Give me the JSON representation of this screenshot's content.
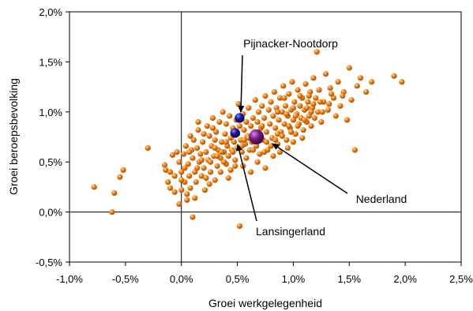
{
  "chart_data": {
    "type": "scatter",
    "title": "",
    "xlabel": "Groei werkgelegenheid",
    "ylabel": "Groei beroepsbevolking",
    "xlim": [
      -1.0,
      2.5
    ],
    "ylim": [
      -0.5,
      2.0
    ],
    "x_ticks": [
      "-1,0%",
      "-0,5%",
      "0,0%",
      "0,5%",
      "1,0%",
      "1,5%",
      "2,0%",
      "2,5%"
    ],
    "y_ticks": [
      "2,0%",
      "1,5%",
      "1,0%",
      "0,5%",
      "0,0%",
      "-0,5%"
    ],
    "grid": false,
    "legend": "none",
    "colors": {
      "municipalities": "#e8780f",
      "highlight": "#1c1c9c",
      "nederland": "#7a1f86"
    },
    "series": [
      {
        "role": "municipalities",
        "points": [
          [
            -0.78,
            0.25
          ],
          [
            -0.62,
            0.0
          ],
          [
            -0.6,
            0.19
          ],
          [
            -0.55,
            0.35
          ],
          [
            -0.52,
            0.42
          ],
          [
            -0.3,
            0.64
          ],
          [
            -0.15,
            0.47
          ],
          [
            -0.14,
            0.42
          ],
          [
            -0.12,
            0.3
          ],
          [
            -0.1,
            0.24
          ],
          [
            -0.08,
            0.57
          ],
          [
            -0.06,
            0.36
          ],
          [
            -0.04,
            0.6
          ],
          [
            -0.02,
            0.5
          ],
          [
            0.0,
            0.4
          ],
          [
            0.0,
            0.22
          ],
          [
            0.02,
            0.58
          ],
          [
            0.03,
            0.3
          ],
          [
            0.04,
            0.66
          ],
          [
            0.05,
            0.18
          ],
          [
            0.06,
            0.48
          ],
          [
            0.07,
            0.36
          ],
          [
            0.08,
            0.24
          ],
          [
            0.09,
            0.62
          ],
          [
            0.1,
            -0.05
          ],
          [
            0.1,
            0.54
          ],
          [
            0.11,
            0.72
          ],
          [
            0.12,
            0.4
          ],
          [
            0.13,
            0.3
          ],
          [
            0.14,
            0.64
          ],
          [
            0.15,
            0.82
          ],
          [
            0.16,
            0.5
          ],
          [
            0.17,
            0.58
          ],
          [
            0.18,
            0.36
          ],
          [
            0.19,
            0.7
          ],
          [
            0.2,
            0.44
          ],
          [
            0.21,
            0.22
          ],
          [
            0.22,
            0.6
          ],
          [
            0.23,
            0.86
          ],
          [
            0.24,
            0.52
          ],
          [
            0.25,
            0.76
          ],
          [
            0.26,
            0.4
          ],
          [
            0.27,
            0.66
          ],
          [
            0.28,
            0.94
          ],
          [
            0.29,
            0.56
          ],
          [
            0.3,
            0.72
          ],
          [
            0.3,
            0.32
          ],
          [
            0.31,
            0.8
          ],
          [
            0.32,
            0.46
          ],
          [
            0.33,
            0.62
          ],
          [
            0.34,
            0.9
          ],
          [
            0.35,
            0.54
          ],
          [
            0.36,
            0.7
          ],
          [
            0.37,
            1.0
          ],
          [
            0.38,
            0.6
          ],
          [
            0.39,
            0.78
          ],
          [
            0.4,
            0.48
          ],
          [
            0.4,
            0.88
          ],
          [
            0.41,
            0.66
          ],
          [
            0.42,
            0.56
          ],
          [
            0.43,
            0.96
          ],
          [
            0.44,
            0.74
          ],
          [
            0.45,
            0.62
          ],
          [
            0.46,
            0.84
          ],
          [
            0.47,
            0.7
          ],
          [
            0.48,
            0.52
          ],
          [
            0.49,
            0.92
          ],
          [
            0.5,
            0.78
          ],
          [
            0.5,
            0.64
          ],
          [
            0.51,
            1.08
          ],
          [
            0.52,
            -0.14
          ],
          [
            0.52,
            0.86
          ],
          [
            0.53,
            0.72
          ],
          [
            0.54,
            0.6
          ],
          [
            0.55,
            0.98
          ],
          [
            0.56,
            0.82
          ],
          [
            0.57,
            0.68
          ],
          [
            0.58,
            0.9
          ],
          [
            0.59,
            0.76
          ],
          [
            0.6,
            1.04
          ],
          [
            0.61,
            0.62
          ],
          [
            0.62,
            0.86
          ],
          [
            0.63,
            0.7
          ],
          [
            0.64,
            0.94
          ],
          [
            0.65,
            0.8
          ],
          [
            0.66,
            1.12
          ],
          [
            0.67,
            0.66
          ],
          [
            0.68,
            0.9
          ],
          [
            0.69,
            1.0
          ],
          [
            0.7,
            0.58
          ],
          [
            0.71,
            0.84
          ],
          [
            0.72,
            1.06
          ],
          [
            0.73,
            0.72
          ],
          [
            0.74,
            0.94
          ],
          [
            0.75,
            1.16
          ],
          [
            0.76,
            0.8
          ],
          [
            0.77,
            0.62
          ],
          [
            0.78,
            1.02
          ],
          [
            0.79,
            0.88
          ],
          [
            0.8,
            1.1
          ],
          [
            0.81,
            0.74
          ],
          [
            0.82,
            0.96
          ],
          [
            0.83,
            1.2
          ],
          [
            0.84,
            0.84
          ],
          [
            0.85,
            1.04
          ],
          [
            0.86,
            0.68
          ],
          [
            0.87,
            0.92
          ],
          [
            0.88,
            1.14
          ],
          [
            0.89,
            0.8
          ],
          [
            0.9,
            1.0
          ],
          [
            0.91,
            1.26
          ],
          [
            0.92,
            0.88
          ],
          [
            0.93,
            1.06
          ],
          [
            0.94,
            0.72
          ],
          [
            0.95,
            0.96
          ],
          [
            0.96,
            1.18
          ],
          [
            0.97,
            0.84
          ],
          [
            0.98,
            1.02
          ],
          [
            0.99,
            1.3
          ],
          [
            1.0,
            0.92
          ],
          [
            1.01,
            1.1
          ],
          [
            1.02,
            0.78
          ],
          [
            1.03,
            0.98
          ],
          [
            1.04,
            1.22
          ],
          [
            1.05,
            0.88
          ],
          [
            1.06,
            1.06
          ],
          [
            1.07,
            0.94
          ],
          [
            1.08,
            1.14
          ],
          [
            1.09,
            0.82
          ],
          [
            1.1,
            1.02
          ],
          [
            1.11,
            1.28
          ],
          [
            1.12,
            0.9
          ],
          [
            1.13,
            1.1
          ],
          [
            1.14,
            0.96
          ],
          [
            1.15,
            1.2
          ],
          [
            1.16,
            0.86
          ],
          [
            1.17,
            1.04
          ],
          [
            1.18,
            1.34
          ],
          [
            1.19,
            0.94
          ],
          [
            1.2,
            1.14
          ],
          [
            1.21,
            1.6
          ],
          [
            1.22,
            1.0
          ],
          [
            1.23,
            1.22
          ],
          [
            1.25,
            0.9
          ],
          [
            1.27,
            1.1
          ],
          [
            1.29,
            1.38
          ],
          [
            1.31,
            1.02
          ],
          [
            1.33,
            1.24
          ],
          [
            1.36,
            1.14
          ],
          [
            1.38,
            0.96
          ],
          [
            1.4,
            1.3
          ],
          [
            1.42,
            1.06
          ],
          [
            1.45,
            1.2
          ],
          [
            1.48,
            0.92
          ],
          [
            1.5,
            1.44
          ],
          [
            1.52,
            1.12
          ],
          [
            1.55,
            0.62
          ],
          [
            1.57,
            1.26
          ],
          [
            1.6,
            1.34
          ],
          [
            1.65,
            1.2
          ],
          [
            1.7,
            1.3
          ],
          [
            1.9,
            1.36
          ],
          [
            1.97,
            1.3
          ],
          [
            0.05,
            0.12
          ],
          [
            0.12,
            0.14
          ],
          [
            -0.02,
            0.08
          ],
          [
            0.25,
            0.28
          ],
          [
            0.35,
            0.4
          ],
          [
            0.42,
            0.34
          ],
          [
            0.55,
            0.46
          ],
          [
            0.62,
            0.4
          ],
          [
            0.68,
            0.5
          ],
          [
            0.75,
            0.44
          ],
          [
            0.82,
            0.56
          ],
          [
            0.88,
            0.6
          ],
          [
            0.95,
            0.64
          ],
          [
            1.0,
            0.7
          ],
          [
            1.08,
            0.74
          ],
          [
            0.2,
            0.78
          ],
          [
            0.28,
            0.84
          ],
          [
            0.15,
            0.9
          ],
          [
            0.08,
            0.76
          ],
          [
            0.36,
            0.6
          ],
          [
            0.44,
            0.42
          ],
          [
            0.58,
            0.54
          ],
          [
            0.66,
            0.74
          ],
          [
            0.72,
            0.86
          ],
          [
            0.8,
            0.66
          ],
          [
            0.86,
            0.78
          ],
          [
            0.92,
            1.14
          ],
          [
            0.98,
            0.8
          ],
          [
            1.04,
            0.86
          ],
          [
            1.1,
            0.92
          ],
          [
            1.16,
            1.0
          ],
          [
            0.03,
            0.44
          ],
          [
            0.18,
            0.52
          ],
          [
            0.26,
            0.5
          ],
          [
            0.32,
            0.56
          ],
          [
            0.4,
            0.7
          ],
          [
            0.46,
            0.6
          ],
          [
            0.54,
            0.66
          ],
          [
            0.6,
            0.74
          ],
          [
            0.64,
            0.62
          ],
          [
            0.7,
            0.76
          ],
          [
            0.76,
            0.7
          ],
          [
            0.84,
            0.72
          ],
          [
            0.9,
            0.76
          ],
          [
            0.96,
            0.86
          ],
          [
            1.02,
            0.96
          ],
          [
            1.06,
            1.16
          ],
          [
            1.12,
            1.04
          ],
          [
            1.18,
            1.08
          ],
          [
            1.26,
            1.0
          ],
          [
            1.32,
            1.08
          ],
          [
            -0.1,
            0.4
          ],
          [
            -0.06,
            0.2
          ],
          [
            0.0,
            0.32
          ],
          [
            0.07,
            0.6
          ],
          [
            0.14,
            0.44
          ],
          [
            0.22,
            0.34
          ],
          [
            0.3,
            0.64
          ],
          [
            0.38,
            0.5
          ],
          [
            0.48,
            0.46
          ],
          [
            0.56,
            0.72
          ],
          [
            0.74,
            0.6
          ],
          [
            0.86,
            1.0
          ],
          [
            0.94,
            0.98
          ],
          [
            1.0,
            1.04
          ],
          [
            1.14,
            1.16
          ],
          [
            1.24,
            1.1
          ],
          [
            1.34,
            1.18
          ],
          [
            1.44,
            1.16
          ]
        ]
      },
      {
        "name": "Pijnacker-Nootdorp",
        "role": "highlight",
        "points": [
          [
            0.52,
            0.94
          ]
        ]
      },
      {
        "name": "Lansingerland",
        "role": "highlight",
        "points": [
          [
            0.48,
            0.79
          ]
        ]
      },
      {
        "name": "Nederland",
        "role": "nederland",
        "points": [
          [
            0.67,
            0.75
          ]
        ]
      }
    ],
    "annotations": [
      {
        "text": "Pijnacker-Nootdorp",
        "target": [
          0.52,
          0.94
        ]
      },
      {
        "text": "Lansingerland",
        "target": [
          0.48,
          0.79
        ]
      },
      {
        "text": "Nederland",
        "target": [
          0.67,
          0.75
        ]
      }
    ]
  }
}
